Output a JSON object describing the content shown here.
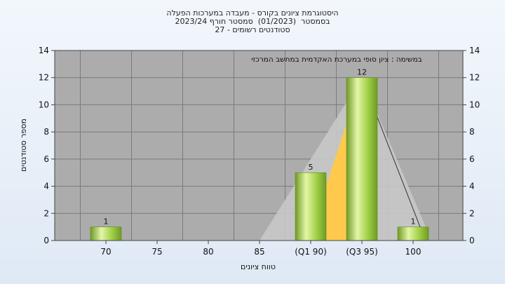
{
  "chart_data": {
    "type": "bar",
    "title_lines": [
      "היסטוגרמת ציונים בקורס - מעבדה במערכות הפעלה",
      "בסמסטר  (01/2023)  סמסטר חורף 2023/24",
      "סטודנטים רשומים - 27"
    ],
    "annotation": "במשימה : ציון סופי במערכת האקדמית במחשב המרכזי",
    "xlabel": "טווח ציונים",
    "ylabel": "מספר סטודנטים",
    "categories": [
      "70",
      "75",
      "80",
      "85",
      "(Q1 90)",
      "(Q3 95)",
      "100"
    ],
    "values": [
      1,
      0,
      0,
      0,
      5,
      12,
      1
    ],
    "bar_labels": [
      "1",
      "",
      "",
      "",
      "5",
      "12",
      "1"
    ],
    "ylim": [
      0,
      14
    ],
    "yticks": [
      "0",
      "2",
      "4",
      "6",
      "8",
      "10",
      "12",
      "14"
    ],
    "grid": true,
    "colors": {
      "plot_bg": "#acacac",
      "bar": "#9fcf45",
      "bar_light": "#e4f6a8",
      "bar_dark": "#6f9a25",
      "quartile_fill": "#ffc94d",
      "range_fill": "#c8c8c8"
    }
  }
}
